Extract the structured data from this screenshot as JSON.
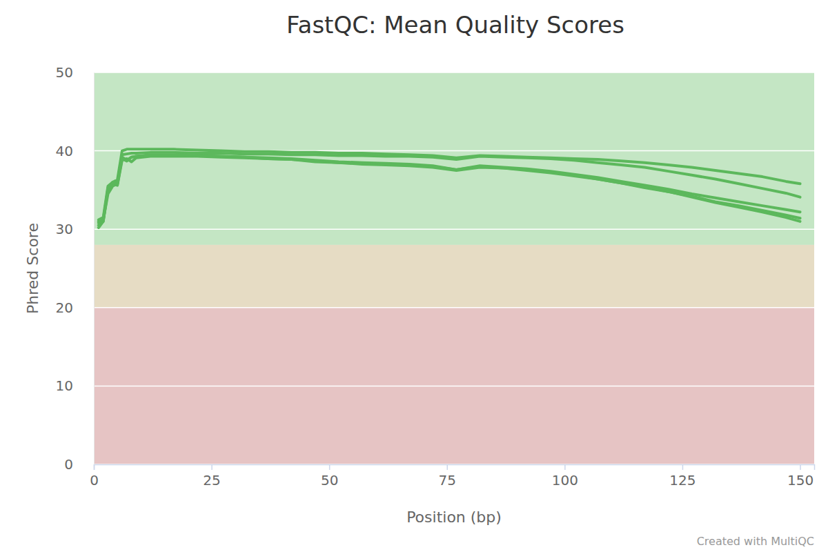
{
  "chart_data": {
    "type": "line",
    "title": "FastQC: Mean Quality Scores",
    "x_label": "Position (bp)",
    "y_label": "Phred Score",
    "credit": "Created with MultiQC",
    "xlim": [
      0,
      153
    ],
    "xticks": [
      0,
      25,
      50,
      75,
      100,
      125,
      150
    ],
    "ylim": [
      0,
      50
    ],
    "yticks": [
      0,
      10,
      20,
      30,
      40,
      50
    ],
    "grid": true,
    "bands": [
      {
        "from": 28,
        "to": 50,
        "color": "#c4e6c4"
      },
      {
        "from": 20,
        "to": 28,
        "color": "#e6dcc4"
      },
      {
        "from": 0,
        "to": 20,
        "color": "#e6c4c4"
      }
    ],
    "x": [
      1,
      2,
      3,
      4,
      5,
      6,
      7,
      8,
      9,
      12,
      17,
      22,
      27,
      32,
      37,
      42,
      47,
      52,
      57,
      62,
      67,
      72,
      77,
      82,
      87,
      92,
      97,
      102,
      107,
      112,
      117,
      122,
      127,
      132,
      137,
      142,
      147,
      150
    ],
    "series": [
      {
        "color": "#5cb85c",
        "values": [
          31.2,
          31.5,
          35.5,
          36.0,
          36.3,
          40.0,
          40.2,
          40.2,
          40.2,
          40.2,
          40.2,
          40.1,
          40.0,
          39.9,
          39.9,
          39.8,
          39.8,
          39.7,
          39.7,
          39.6,
          39.5,
          39.4,
          39.1,
          39.4,
          39.3,
          39.2,
          39.1,
          39.0,
          38.9,
          38.7,
          38.5,
          38.2,
          37.9,
          37.5,
          37.1,
          36.7,
          36.1,
          35.8
        ]
      },
      {
        "color": "#5cb85c",
        "values": [
          30.5,
          31.0,
          35.0,
          35.8,
          36.0,
          39.5,
          39.6,
          39.7,
          39.7,
          39.8,
          39.8,
          39.7,
          39.7,
          39.6,
          39.6,
          39.5,
          39.5,
          39.4,
          39.4,
          39.3,
          39.3,
          39.2,
          38.9,
          39.3,
          39.2,
          39.1,
          39.0,
          38.8,
          38.5,
          38.2,
          37.9,
          37.4,
          36.9,
          36.4,
          35.8,
          35.2,
          34.6,
          34.1
        ]
      },
      {
        "color": "#5cb85c",
        "values": [
          30.8,
          31.2,
          34.5,
          35.5,
          35.8,
          39.2,
          38.8,
          39.2,
          39.3,
          39.4,
          39.4,
          39.4,
          39.3,
          39.2,
          39.1,
          39.0,
          38.8,
          38.6,
          38.5,
          38.4,
          38.3,
          38.1,
          37.6,
          38.1,
          37.9,
          37.7,
          37.4,
          37.0,
          36.6,
          36.1,
          35.6,
          35.1,
          34.5,
          34.0,
          33.5,
          33.0,
          32.5,
          32.2
        ]
      },
      {
        "color": "#5cb85c",
        "values": [
          31.0,
          31.3,
          35.0,
          35.8,
          35.6,
          38.8,
          39.0,
          38.6,
          39.1,
          39.3,
          39.3,
          39.3,
          39.2,
          39.1,
          39.0,
          38.9,
          38.7,
          38.5,
          38.4,
          38.3,
          38.2,
          38.0,
          37.6,
          38.0,
          37.8,
          37.6,
          37.3,
          36.9,
          36.4,
          35.9,
          35.3,
          34.8,
          34.2,
          33.5,
          33.0,
          32.4,
          31.8,
          31.4
        ]
      },
      {
        "color": "#5cb85c",
        "values": [
          30.2,
          31.0,
          35.3,
          36.0,
          35.7,
          39.0,
          38.7,
          39.2,
          39.3,
          39.5,
          39.5,
          39.4,
          39.3,
          39.2,
          39.0,
          38.9,
          38.6,
          38.5,
          38.3,
          38.2,
          38.1,
          37.9,
          37.5,
          37.9,
          37.8,
          37.5,
          37.2,
          36.8,
          36.4,
          35.9,
          35.4,
          34.8,
          34.1,
          33.4,
          32.8,
          32.2,
          31.5,
          31.0
        ]
      }
    ]
  }
}
